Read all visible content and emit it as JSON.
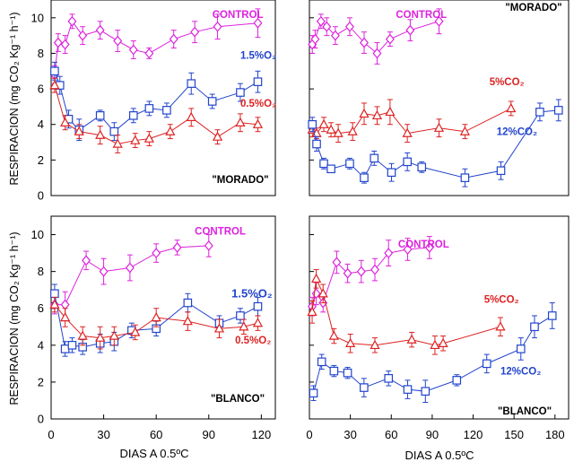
{
  "colors": {
    "control": "#dd22dd",
    "oxygen_low": "#dd2222",
    "co2_or_o2_blue": "#2244cc",
    "axis": "#000000"
  },
  "ylabel_top": "RESPIRACION (mg CO₂ Kg⁻¹ h⁻¹)",
  "ylabel_bottom": "RESPIRACION (mg CO₂ Kg⁻¹ h⁻¹)",
  "xlabel_left": "DIAS A 0.5ºC",
  "xlabel_right": "DIAS A 0.5ºC",
  "chart_data": [
    {
      "id": "top_left",
      "type": "line",
      "xlim": [
        0,
        128
      ],
      "ylim": [
        0,
        11
      ],
      "yticks": [
        0,
        2,
        4,
        6,
        8,
        10
      ],
      "xticks": [],
      "label": "\"MORADO\"",
      "series": [
        {
          "name": "CONTROL",
          "color": "#dd22dd",
          "marker": "diamond",
          "x": [
            2,
            4,
            8,
            12,
            18,
            28,
            38,
            47,
            56,
            70,
            82,
            95,
            118
          ],
          "y": [
            6.8,
            8.6,
            8.5,
            9.8,
            9.0,
            9.3,
            8.7,
            8.2,
            8.0,
            8.8,
            9.2,
            9.5,
            9.7
          ],
          "err": [
            0.5,
            0.5,
            0.5,
            0.4,
            0.5,
            0.5,
            0.6,
            0.5,
            0.3,
            0.5,
            0.6,
            0.7,
            0.8
          ]
        },
        {
          "name": "1.5%O₂",
          "color": "#2244cc",
          "marker": "square",
          "x": [
            2,
            5,
            10,
            16,
            28,
            36,
            47,
            56,
            66,
            80,
            92,
            108,
            118
          ],
          "y": [
            7.0,
            6.2,
            4.3,
            3.7,
            4.5,
            3.6,
            4.5,
            4.9,
            4.8,
            6.3,
            5.3,
            5.8,
            6.4
          ],
          "err": [
            0.5,
            0.5,
            0.5,
            0.6,
            0.3,
            0.5,
            0.4,
            0.4,
            0.4,
            0.6,
            0.4,
            0.5,
            0.6
          ]
        },
        {
          "name": "0.5%O₂",
          "color": "#dd2222",
          "marker": "triangle",
          "x": [
            2,
            8,
            16,
            28,
            38,
            48,
            56,
            68,
            80,
            95,
            108,
            118
          ],
          "y": [
            6.2,
            4.1,
            3.6,
            3.4,
            2.9,
            3.1,
            3.2,
            3.6,
            4.4,
            3.3,
            4.1,
            4.0
          ],
          "err": [
            0.4,
            0.4,
            0.4,
            0.5,
            0.5,
            0.4,
            0.4,
            0.4,
            0.5,
            0.4,
            0.5,
            0.4
          ]
        }
      ],
      "annotations": [
        {
          "text": "CONTROL",
          "series": "CONTROL",
          "x": 92,
          "y": 10.0,
          "anchor": "start"
        },
        {
          "text": "1.5%O₂",
          "series": "1.5%O₂",
          "x": 108,
          "y": 7.7,
          "anchor": "start"
        },
        {
          "text": "0.5%O₂",
          "series": "0.5%O₂",
          "x": 108,
          "y": 5.0,
          "anchor": "start"
        }
      ]
    },
    {
      "id": "top_right",
      "type": "line",
      "xlim": [
        0,
        180
      ],
      "ylim": [
        0,
        11
      ],
      "yticks": [
        0,
        2,
        4,
        6,
        8,
        10
      ],
      "xticks": [],
      "label": "\"MORADO\"",
      "series": [
        {
          "name": "CONTROL",
          "color": "#dd22dd",
          "marker": "diamond",
          "x": [
            2,
            4,
            8,
            12,
            18,
            28,
            38,
            47,
            56,
            70,
            90
          ],
          "y": [
            8.5,
            8.8,
            9.8,
            9.5,
            9.0,
            9.5,
            8.6,
            8.0,
            8.8,
            9.3,
            9.8
          ],
          "err": [
            0.5,
            0.5,
            0.4,
            0.5,
            0.5,
            0.5,
            0.6,
            0.6,
            0.4,
            0.6,
            0.7
          ]
        },
        {
          "name": "5%CO₂",
          "color": "#dd2222",
          "marker": "triangle",
          "x": [
            2,
            5,
            10,
            15,
            20,
            30,
            38,
            47,
            56,
            68,
            90,
            108,
            140
          ],
          "y": [
            3.7,
            3.5,
            4.0,
            3.7,
            3.5,
            3.6,
            4.6,
            4.5,
            4.7,
            3.5,
            3.8,
            3.6,
            4.9
          ],
          "err": [
            0.4,
            0.3,
            0.4,
            0.4,
            0.5,
            0.5,
            0.6,
            0.5,
            0.7,
            0.5,
            0.5,
            0.4,
            0.4
          ]
        },
        {
          "name": "12%CO₂",
          "color": "#2244cc",
          "marker": "square",
          "x": [
            2,
            5,
            10,
            15,
            28,
            38,
            45,
            57,
            68,
            78,
            108,
            133,
            160,
            173
          ],
          "y": [
            4.0,
            2.9,
            1.8,
            1.5,
            1.8,
            1.0,
            2.1,
            1.3,
            1.9,
            1.6,
            1.0,
            1.4,
            4.7,
            4.8
          ],
          "err": [
            0.4,
            0.4,
            0.3,
            0.2,
            0.3,
            0.3,
            0.4,
            0.5,
            0.5,
            0.3,
            0.5,
            0.5,
            0.5,
            0.6
          ]
        }
      ],
      "annotations": [
        {
          "text": "CONTROL",
          "series": "CONTROL",
          "x": 60,
          "y": 10.0,
          "anchor": "start"
        },
        {
          "text": "5%CO₂",
          "series": "5%CO₂",
          "x": 125,
          "y": 6.2,
          "anchor": "start"
        },
        {
          "text": "12%CO₂",
          "series": "12%CO₂",
          "x": 130,
          "y": 3.4,
          "anchor": "start"
        }
      ]
    },
    {
      "id": "bottom_left",
      "type": "line",
      "xlim": [
        0,
        128
      ],
      "ylim": [
        0,
        11
      ],
      "yticks": [
        0,
        2,
        4,
        6,
        8,
        10
      ],
      "xticks": [
        0,
        30,
        60,
        90,
        120
      ],
      "label": "\"BLANCO\"",
      "series": [
        {
          "name": "CONTROL",
          "color": "#dd22dd",
          "marker": "diamond",
          "x": [
            2,
            8,
            20,
            30,
            45,
            60,
            72,
            90
          ],
          "y": [
            6.2,
            6.2,
            8.6,
            8.0,
            8.2,
            9.0,
            9.3,
            9.4
          ],
          "err": [
            0.5,
            0.7,
            0.5,
            0.7,
            0.7,
            0.5,
            0.4,
            0.6
          ]
        },
        {
          "name": "1.5%O₂",
          "color": "#2244cc",
          "marker": "square",
          "x": [
            2,
            8,
            12,
            18,
            28,
            36,
            46,
            60,
            78,
            96,
            108,
            118
          ],
          "y": [
            6.8,
            3.8,
            4.0,
            3.9,
            4.1,
            4.2,
            4.8,
            4.9,
            6.3,
            5.2,
            5.6,
            6.1
          ],
          "err": [
            0.5,
            0.4,
            0.4,
            0.4,
            0.5,
            0.5,
            0.4,
            0.4,
            0.5,
            0.4,
            0.4,
            0.5
          ]
        },
        {
          "name": "0.5%O₂",
          "color": "#dd2222",
          "marker": "triangle",
          "x": [
            2,
            8,
            18,
            28,
            36,
            48,
            60,
            78,
            96,
            110,
            118
          ],
          "y": [
            6.2,
            5.5,
            4.5,
            4.4,
            4.5,
            4.7,
            5.5,
            5.3,
            4.9,
            5.0,
            5.2
          ],
          "err": [
            0.4,
            0.5,
            0.5,
            0.6,
            0.5,
            0.4,
            0.5,
            0.5,
            0.5,
            0.4,
            0.4
          ]
        }
      ],
      "annotations": [
        {
          "text": "CONTROL",
          "series": "CONTROL",
          "x": 82,
          "y": 10.0,
          "anchor": "start"
        },
        {
          "text": "1.5%O₂",
          "series": "1.5%O₂",
          "x": 103,
          "y": 6.6,
          "anchor": "start",
          "big": true
        },
        {
          "text": "0.5%O₂",
          "series": "0.5%O₂",
          "x": 105,
          "y": 4.1,
          "anchor": "start"
        }
      ]
    },
    {
      "id": "bottom_right",
      "type": "line",
      "xlim": [
        0,
        190
      ],
      "ylim": [
        0,
        11
      ],
      "yticks": [
        0,
        2,
        4,
        6,
        8,
        10
      ],
      "xticks": [
        0,
        30,
        60,
        90,
        120,
        150,
        180
      ],
      "label": "\"BLANCO\"",
      "series": [
        {
          "name": "CONTROL",
          "color": "#dd22dd",
          "marker": "diamond",
          "x": [
            2,
            5,
            10,
            20,
            28,
            38,
            48,
            58,
            72,
            88
          ],
          "y": [
            6.1,
            6.8,
            6.3,
            8.5,
            7.9,
            8.0,
            8.1,
            9.0,
            9.2,
            9.3
          ],
          "err": [
            0.5,
            0.6,
            0.5,
            0.6,
            0.5,
            0.6,
            0.6,
            0.7,
            0.6,
            0.6
          ]
        },
        {
          "name": "5%CO₂",
          "color": "#dd2222",
          "marker": "triangle",
          "x": [
            2,
            5,
            10,
            18,
            30,
            48,
            75,
            92,
            98,
            140
          ],
          "y": [
            5.8,
            7.6,
            6.8,
            4.5,
            4.1,
            4.0,
            4.3,
            4.0,
            4.1,
            5.0
          ],
          "err": [
            0.6,
            0.5,
            0.5,
            0.4,
            0.5,
            0.4,
            0.4,
            0.5,
            0.4,
            0.5
          ]
        },
        {
          "name": "12%CO₂",
          "color": "#2244cc",
          "marker": "square",
          "x": [
            3,
            9,
            18,
            28,
            40,
            58,
            72,
            85,
            108,
            130,
            155,
            165,
            178
          ],
          "y": [
            1.4,
            3.1,
            2.6,
            2.5,
            1.7,
            2.2,
            1.6,
            1.5,
            2.1,
            3.0,
            3.8,
            5.0,
            5.6
          ],
          "err": [
            0.4,
            0.4,
            0.3,
            0.3,
            0.5,
            0.4,
            0.5,
            0.6,
            0.3,
            0.5,
            0.6,
            0.6,
            0.7
          ]
        }
      ],
      "annotations": [
        {
          "text": "CONTROL",
          "series": "CONTROL",
          "x": 65,
          "y": 9.3,
          "anchor": "start"
        },
        {
          "text": "5%CO₂",
          "series": "5%CO₂",
          "x": 128,
          "y": 6.3,
          "anchor": "start"
        },
        {
          "text": "12%CO₂",
          "series": "12%CO₂",
          "x": 140,
          "y": 2.4,
          "anchor": "start"
        }
      ]
    }
  ]
}
